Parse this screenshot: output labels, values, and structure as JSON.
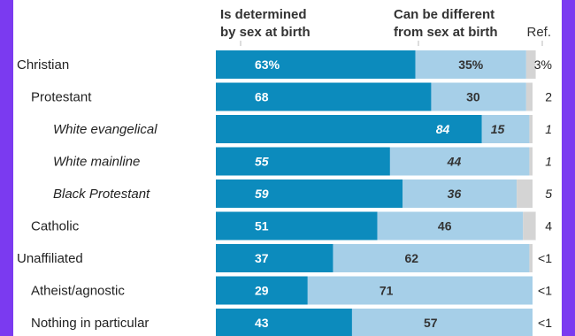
{
  "chart_data": {
    "type": "bar",
    "stacked": true,
    "orientation": "horizontal",
    "headers": {
      "series1": [
        "Is determined",
        "by sex at birth"
      ],
      "series2": [
        "Can be different",
        "from sex at birth"
      ],
      "ref": "Ref."
    },
    "colors": {
      "series1": "#0c8bbd",
      "series2": "#a6cfe8",
      "ref": "#d4d4d4"
    },
    "xlim": [
      0,
      100
    ],
    "categories": [
      "Christian",
      "Protestant",
      "White evangelical",
      "White mainline",
      "Black Protestant",
      "Catholic",
      "Unaffiliated",
      "Atheist/agnostic",
      "Nothing in particular"
    ],
    "indent": [
      0,
      1,
      2,
      2,
      2,
      1,
      0,
      1,
      1
    ],
    "italic": [
      false,
      false,
      true,
      true,
      true,
      false,
      false,
      false,
      false
    ],
    "series": [
      {
        "name": "Is determined by sex at birth",
        "values": [
          63,
          68,
          84,
          55,
          59,
          51,
          37,
          29,
          43
        ],
        "labels": [
          "63%",
          "68",
          "84",
          "55",
          "59",
          "51",
          "37",
          "29",
          "43"
        ]
      },
      {
        "name": "Can be different from sex at birth",
        "values": [
          35,
          30,
          15,
          44,
          36,
          46,
          62,
          71,
          57
        ],
        "labels": [
          "35%",
          "30",
          "15",
          "44",
          "36",
          "46",
          "62",
          "71",
          "57"
        ]
      },
      {
        "name": "Ref.",
        "values": [
          3,
          2,
          1,
          1,
          5,
          4,
          1,
          0,
          0
        ],
        "labels": [
          "3%",
          "2",
          "1",
          "1",
          "5",
          "4",
          "<1",
          "<1",
          "<1"
        ]
      }
    ]
  }
}
